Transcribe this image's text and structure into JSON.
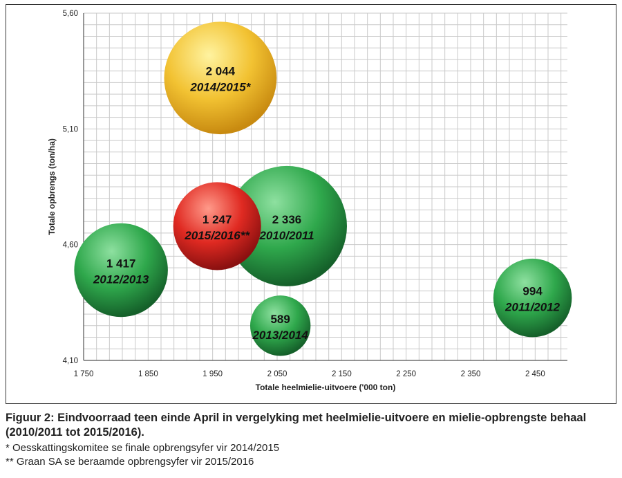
{
  "chart_data": {
    "type": "bubble",
    "xlabel": "Totale heelmielie-uitvoere ('000 ton)",
    "ylabel": "Totale opbrengs  (ton/ha)",
    "xlim": [
      1750,
      2500
    ],
    "ylim": [
      4.1,
      5.6
    ],
    "x_ticks": [
      1750,
      1850,
      1950,
      2050,
      2150,
      2250,
      2350,
      2450
    ],
    "x_tick_labels": [
      "1 750",
      "1 850",
      "1 950",
      "2 050",
      "2 150",
      "2 250",
      "2 350",
      "2 450"
    ],
    "y_ticks": [
      4.1,
      4.6,
      5.1,
      5.6
    ],
    "y_tick_labels": [
      "4,10",
      "4,60",
      "5,10",
      "5,60"
    ],
    "grid": true,
    "points": [
      {
        "season": "2014/2015*",
        "stock": "2 044",
        "size": 2044,
        "x": 1962,
        "y": 5.32,
        "color": "#e8b020"
      },
      {
        "season": "2010/2011",
        "stock": "2 336",
        "size": 2336,
        "x": 2065,
        "y": 4.68,
        "color": "#2a9a44"
      },
      {
        "season": "2015/2016**",
        "stock": "1 247",
        "size": 1247,
        "x": 1957,
        "y": 4.68,
        "color": "#d42020"
      },
      {
        "season": "2012/2013",
        "stock": "1 417",
        "size": 1417,
        "x": 1808,
        "y": 4.49,
        "color": "#2a9a44"
      },
      {
        "season": "2011/2012",
        "stock": "994",
        "size": 994,
        "x": 2446,
        "y": 4.37,
        "color": "#2a9a44"
      },
      {
        "season": "2013/2014",
        "stock": "589",
        "size": 589,
        "x": 2055,
        "y": 4.25,
        "color": "#2a9a44"
      }
    ]
  },
  "caption": {
    "title": "Figuur 2: Eindvoorraad teen einde April in vergelyking met heelmielie-uitvoere en mielie-opbrengste behaal (2010/2011 tot 2015/2016).",
    "note1": "* Oesskattingskomitee se finale opbrengsyfer vir 2014/2015",
    "note2": "** Graan SA se beraamde opbrengsyfer vir 2015/2016"
  }
}
